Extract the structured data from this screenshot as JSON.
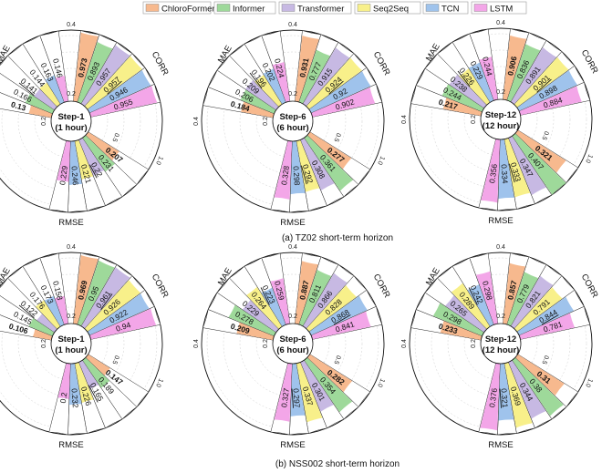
{
  "colors": {
    "ChloroFormer": "#f7b98e",
    "Informer": "#9ed99a",
    "Transformer": "#c7b9e3",
    "Seq2Seq": "#f8f08a",
    "TCN": "#9fc3ec",
    "LSTM": "#f3a6e8"
  },
  "legend": [
    "ChloroFormer",
    "Informer",
    "Transformer",
    "Seq2Seq",
    "TCN",
    "LSTM"
  ],
  "metric_labels": {
    "mae": "MAE",
    "corr": "CORR",
    "rmse": "RMSE"
  },
  "ticks": {
    "inner_left": "0.2",
    "outer_left": "0.4",
    "inner_right": "0.5",
    "outer_right": "1.0"
  },
  "chart_data": [
    {
      "type": "radial-bar",
      "row": 0,
      "col": 0,
      "center_line1": "Step-1",
      "center_line2": "(1 hour)",
      "mae": [
        0.13,
        0.166,
        0.141,
        0.144,
        0.163,
        0.146
      ],
      "corr": [
        0.973,
        0.893,
        0.957,
        0.957,
        0.946,
        0.955
      ],
      "rmse": [
        0.207,
        0.231,
        0.22,
        0.221,
        0.246,
        0.229
      ],
      "bold": {
        "mae": 0,
        "corr": 0,
        "rmse": 0
      },
      "underline": {
        "mae": 2,
        "corr": 3,
        "rmse": 2
      }
    },
    {
      "type": "radial-bar",
      "row": 0,
      "col": 1,
      "center_line1": "Step-6",
      "center_line2": "(6 hour)",
      "mae": [
        0.184,
        0.206,
        0.209,
        0.196,
        0.202,
        0.224
      ],
      "corr": [
        0.931,
        0.777,
        0.915,
        0.924,
        0.92,
        0.902
      ],
      "rmse": [
        0.277,
        0.361,
        0.308,
        0.292,
        0.298,
        0.328
      ],
      "bold": {
        "mae": 0,
        "corr": 0,
        "rmse": 0
      },
      "underline": {
        "mae": 3,
        "corr": 3,
        "rmse": 3
      }
    },
    {
      "type": "radial-bar",
      "row": 0,
      "col": 2,
      "center_line1": "Step-12",
      "center_line2": "(12 hour)",
      "mae": [
        0.217,
        0.244,
        0.238,
        0.226,
        0.229,
        0.244
      ],
      "corr": [
        0.906,
        0.836,
        0.891,
        0.901,
        0.898,
        0.884
      ],
      "rmse": [
        0.321,
        0.407,
        0.347,
        0.333,
        0.334,
        0.356
      ],
      "bold": {
        "mae": 0,
        "corr": 0,
        "rmse": 0
      },
      "underline": {
        "mae": 3,
        "corr": 3,
        "rmse": 3
      }
    },
    {
      "type": "radial-bar",
      "row": 1,
      "col": 0,
      "center_line1": "Step-1",
      "center_line2": "(1 hour)",
      "mae": [
        0.106,
        0.145,
        0.122,
        0.176,
        0.173,
        0.158
      ],
      "corr": [
        0.969,
        0.95,
        0.961,
        0.926,
        0.922,
        0.94
      ],
      "rmse": [
        0.147,
        0.189,
        0.165,
        0.226,
        0.232,
        0.2
      ],
      "bold": {
        "mae": 0,
        "corr": 0,
        "rmse": 0
      },
      "underline": {
        "mae": 2,
        "corr": 2,
        "rmse": 2
      }
    },
    {
      "type": "radial-bar",
      "row": 1,
      "col": 1,
      "center_line1": "Step-6",
      "center_line2": "(6 hour)",
      "mae": [
        0.209,
        0.278,
        0.229,
        0.264,
        0.223,
        0.259
      ],
      "corr": [
        0.887,
        0.811,
        0.866,
        0.828,
        0.868,
        0.841
      ],
      "rmse": [
        0.282,
        0.354,
        0.301,
        0.337,
        0.297,
        0.327
      ],
      "bold": {
        "mae": 0,
        "corr": 0,
        "rmse": 0
      },
      "underline": {
        "mae": 4,
        "corr": 4,
        "rmse": 4
      }
    },
    {
      "type": "radial-bar",
      "row": 1,
      "col": 2,
      "center_line1": "Step-12",
      "center_line2": "(12 hour)",
      "mae": [
        0.233,
        0.298,
        0.265,
        0.289,
        0.242,
        0.298
      ],
      "corr": [
        0.857,
        0.779,
        0.821,
        0.791,
        0.844,
        0.781
      ],
      "rmse": [
        0.31,
        0.38,
        0.344,
        0.369,
        0.321,
        0.376
      ],
      "bold": {
        "mae": 0,
        "corr": 0,
        "rmse": 0
      },
      "underline": {
        "mae": 4,
        "corr": 4,
        "rmse": 4
      }
    }
  ],
  "captions": [
    "(a) TZ02 short-term horizon",
    "(b) NSS002 short-term horizon"
  ]
}
